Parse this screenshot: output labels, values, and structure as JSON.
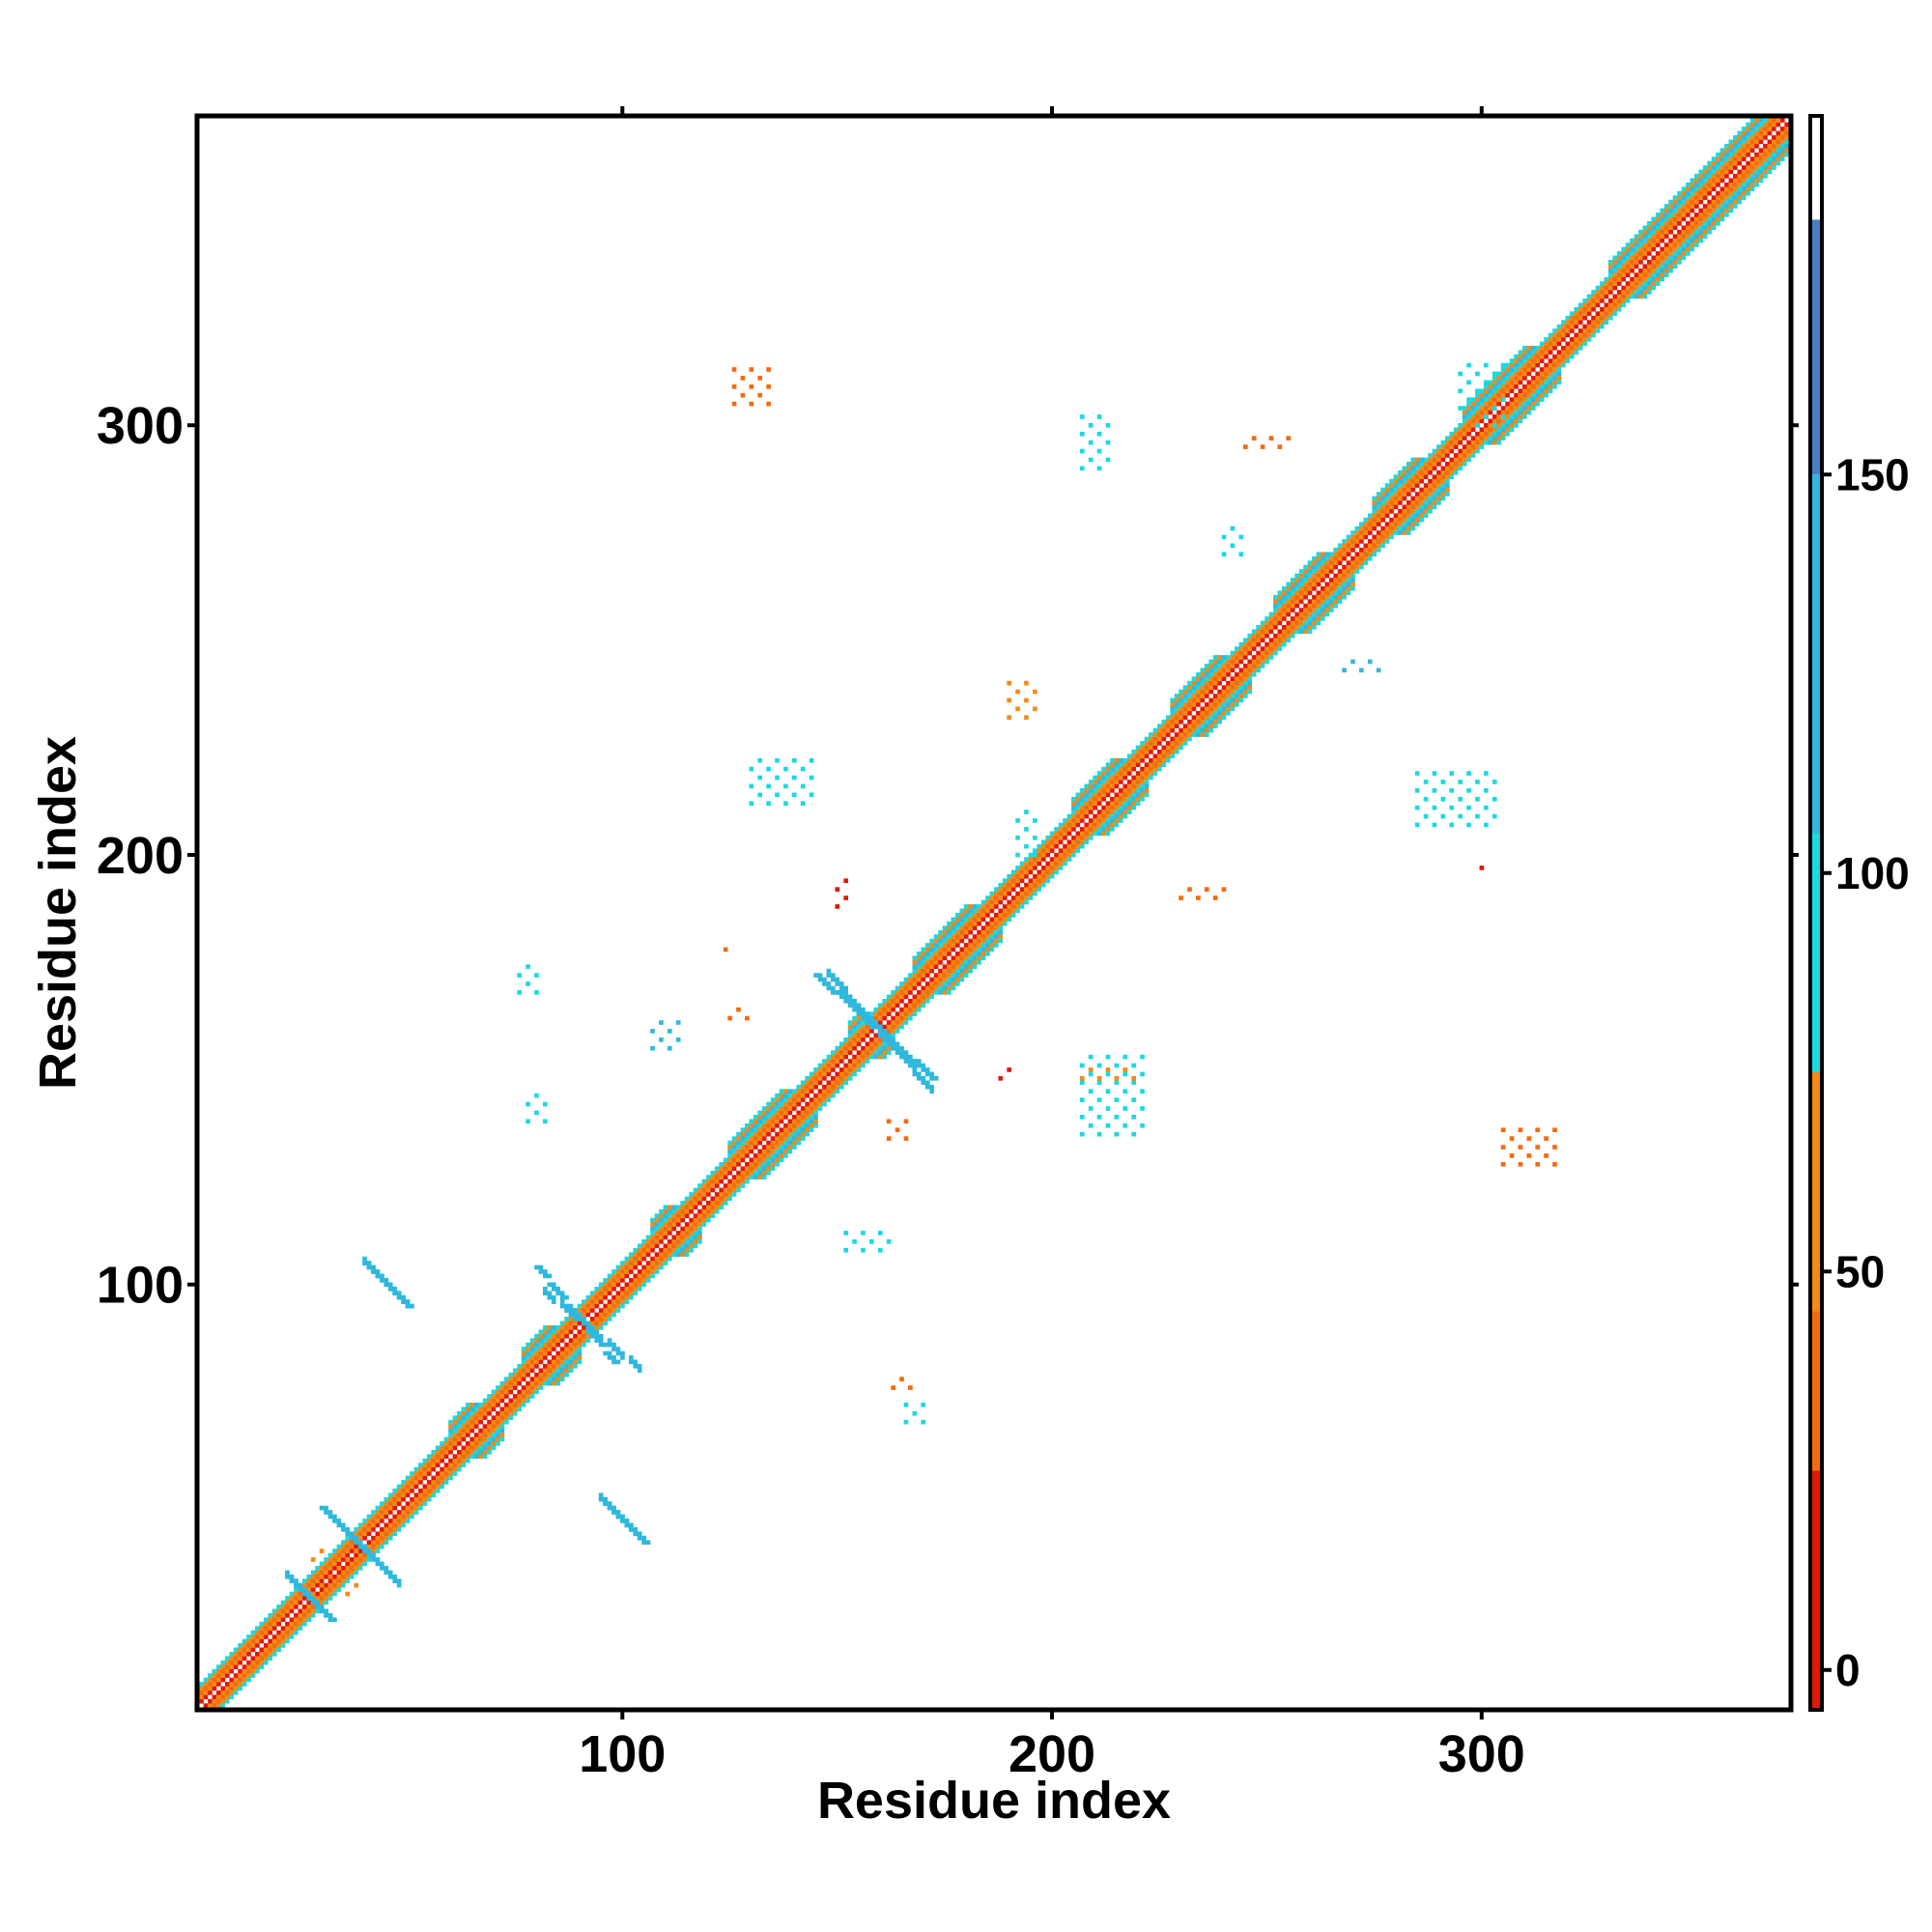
{
  "chart_data": {
    "type": "heatmap",
    "title": "",
    "xlabel": "Residue index",
    "ylabel": "Residue index",
    "xlim": [
      1,
      372
    ],
    "ylim": [
      1,
      372
    ],
    "x_ticks": [
      100,
      200,
      300
    ],
    "y_ticks": [
      100,
      200,
      300
    ],
    "colorbar": {
      "ticks": [
        0,
        50,
        100,
        150
      ],
      "range": [
        -5,
        195
      ],
      "bands": [
        {
          "from": -5,
          "to": 25,
          "color": "#e3170a"
        },
        {
          "from": 25,
          "to": 45,
          "color": "#f26b0f"
        },
        {
          "from": 45,
          "to": 75,
          "color": "#f58a12"
        },
        {
          "from": 75,
          "to": 105,
          "color": "#1ad9e3"
        },
        {
          "from": 105,
          "to": 150,
          "color": "#2fb8de"
        },
        {
          "from": 150,
          "to": 182,
          "color": "#4a7fbf"
        },
        {
          "from": 182,
          "to": 195,
          "color": "#ffffff"
        }
      ]
    },
    "diagonal": {
      "from": 1,
      "to": 372
    },
    "helix_segments": [
      [
        60,
        72
      ],
      [
        77,
        90
      ],
      [
        107,
        118
      ],
      [
        125,
        145
      ],
      [
        153,
        163
      ],
      [
        168,
        188
      ],
      [
        205,
        222
      ],
      [
        228,
        246
      ],
      [
        252,
        270
      ],
      [
        275,
        292
      ],
      [
        296,
        318
      ],
      [
        330,
        372
      ]
    ],
    "antiparallel_strands": [
      {
        "i": [
          22,
          32
        ],
        "j": [
          22,
          32
        ],
        "value": 140
      },
      {
        "i": [
          30,
          40
        ],
        "j": [
          38,
          48
        ],
        "value": 140
      },
      {
        "i": [
          40,
          50
        ],
        "j": [
          95,
          105
        ],
        "value": 130
      },
      {
        "i": [
          80,
          98
        ],
        "j": [
          82,
          104
        ],
        "value": 140
      },
      {
        "i": [
          95,
          105
        ],
        "j": [
          40,
          50
        ],
        "value": 140
      },
      {
        "i": [
          145,
          172
        ],
        "j": [
          148,
          172
        ],
        "value": 140
      }
    ],
    "contact_patches": [
      {
        "x": 28,
        "y": 28,
        "w": 12,
        "h": 12,
        "value": 60
      },
      {
        "x": 76,
        "y": 168,
        "w": 6,
        "h": 8,
        "value": 90
      },
      {
        "x": 78,
        "y": 138,
        "w": 6,
        "h": 8,
        "value": 100
      },
      {
        "x": 107,
        "y": 155,
        "w": 8,
        "h": 8,
        "value": 110
      },
      {
        "x": 125,
        "y": 162,
        "w": 6,
        "h": 4,
        "value": 30
      },
      {
        "x": 130,
        "y": 212,
        "w": 16,
        "h": 12,
        "value": 95
      },
      {
        "x": 150,
        "y": 188,
        "w": 4,
        "h": 8,
        "value": 20
      },
      {
        "x": 152,
        "y": 108,
        "w": 12,
        "h": 6,
        "value": 100
      },
      {
        "x": 162,
        "y": 134,
        "w": 6,
        "h": 6,
        "value": 30
      },
      {
        "x": 163,
        "y": 76,
        "w": 6,
        "h": 4,
        "value": 40
      },
      {
        "x": 166,
        "y": 68,
        "w": 6,
        "h": 6,
        "value": 100
      },
      {
        "x": 188,
        "y": 148,
        "w": 4,
        "h": 4,
        "value": 20
      },
      {
        "x": 190,
        "y": 232,
        "w": 8,
        "h": 10,
        "value": 60
      },
      {
        "x": 192,
        "y": 200,
        "w": 6,
        "h": 12,
        "value": 100
      },
      {
        "x": 207,
        "y": 290,
        "w": 8,
        "h": 14,
        "value": 100
      },
      {
        "x": 207,
        "y": 135,
        "w": 16,
        "h": 20,
        "value": 95
      },
      {
        "x": 207,
        "y": 148,
        "w": 14,
        "h": 4,
        "value": 50
      },
      {
        "x": 230,
        "y": 190,
        "w": 12,
        "h": 4,
        "value": 40
      },
      {
        "x": 240,
        "y": 270,
        "w": 6,
        "h": 8,
        "value": 100
      },
      {
        "x": 245,
        "y": 295,
        "w": 12,
        "h": 4,
        "value": 40
      },
      {
        "x": 268,
        "y": 243,
        "w": 10,
        "h": 4,
        "value": 110
      },
      {
        "x": 285,
        "y": 207,
        "w": 20,
        "h": 14,
        "value": 100
      },
      {
        "x": 300,
        "y": 197,
        "w": 4,
        "h": 2,
        "value": 20
      },
      {
        "x": 305,
        "y": 128,
        "w": 14,
        "h": 10,
        "value": 40
      },
      {
        "x": 295,
        "y": 300,
        "w": 12,
        "h": 16,
        "value": 100
      },
      {
        "x": 126,
        "y": 305,
        "w": 10,
        "h": 10,
        "value": 40
      },
      {
        "x": 124,
        "y": 178,
        "w": 2,
        "h": 2,
        "value": 30
      }
    ]
  }
}
